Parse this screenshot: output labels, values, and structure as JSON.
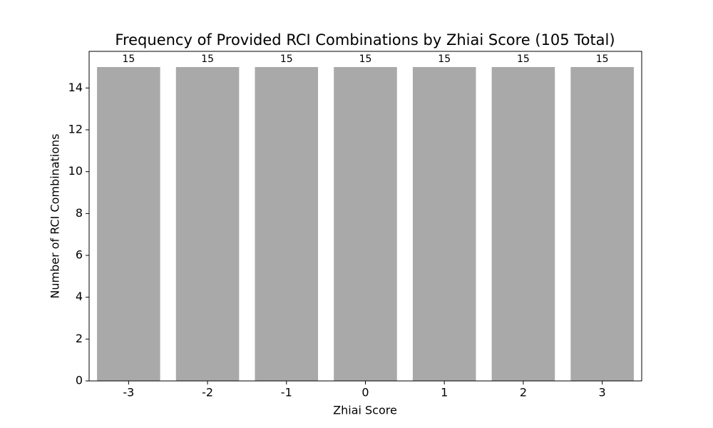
{
  "chart_data": {
    "type": "bar",
    "title": "Frequency of Provided RCI Combinations by Zhiai Score (105 Total)",
    "x_label": "Zhiai Score",
    "y_label": "Number of RCI Combinations",
    "categories": [
      "-3",
      "-2",
      "-1",
      "0",
      "1",
      "2",
      "3"
    ],
    "values": [
      15,
      15,
      15,
      15,
      15,
      15,
      15
    ],
    "color": "#a9a9a9",
    "ylim": [
      0,
      15.75
    ],
    "yticks": [
      0,
      2,
      4,
      6,
      8,
      10,
      12,
      14
    ],
    "grid": false
  }
}
